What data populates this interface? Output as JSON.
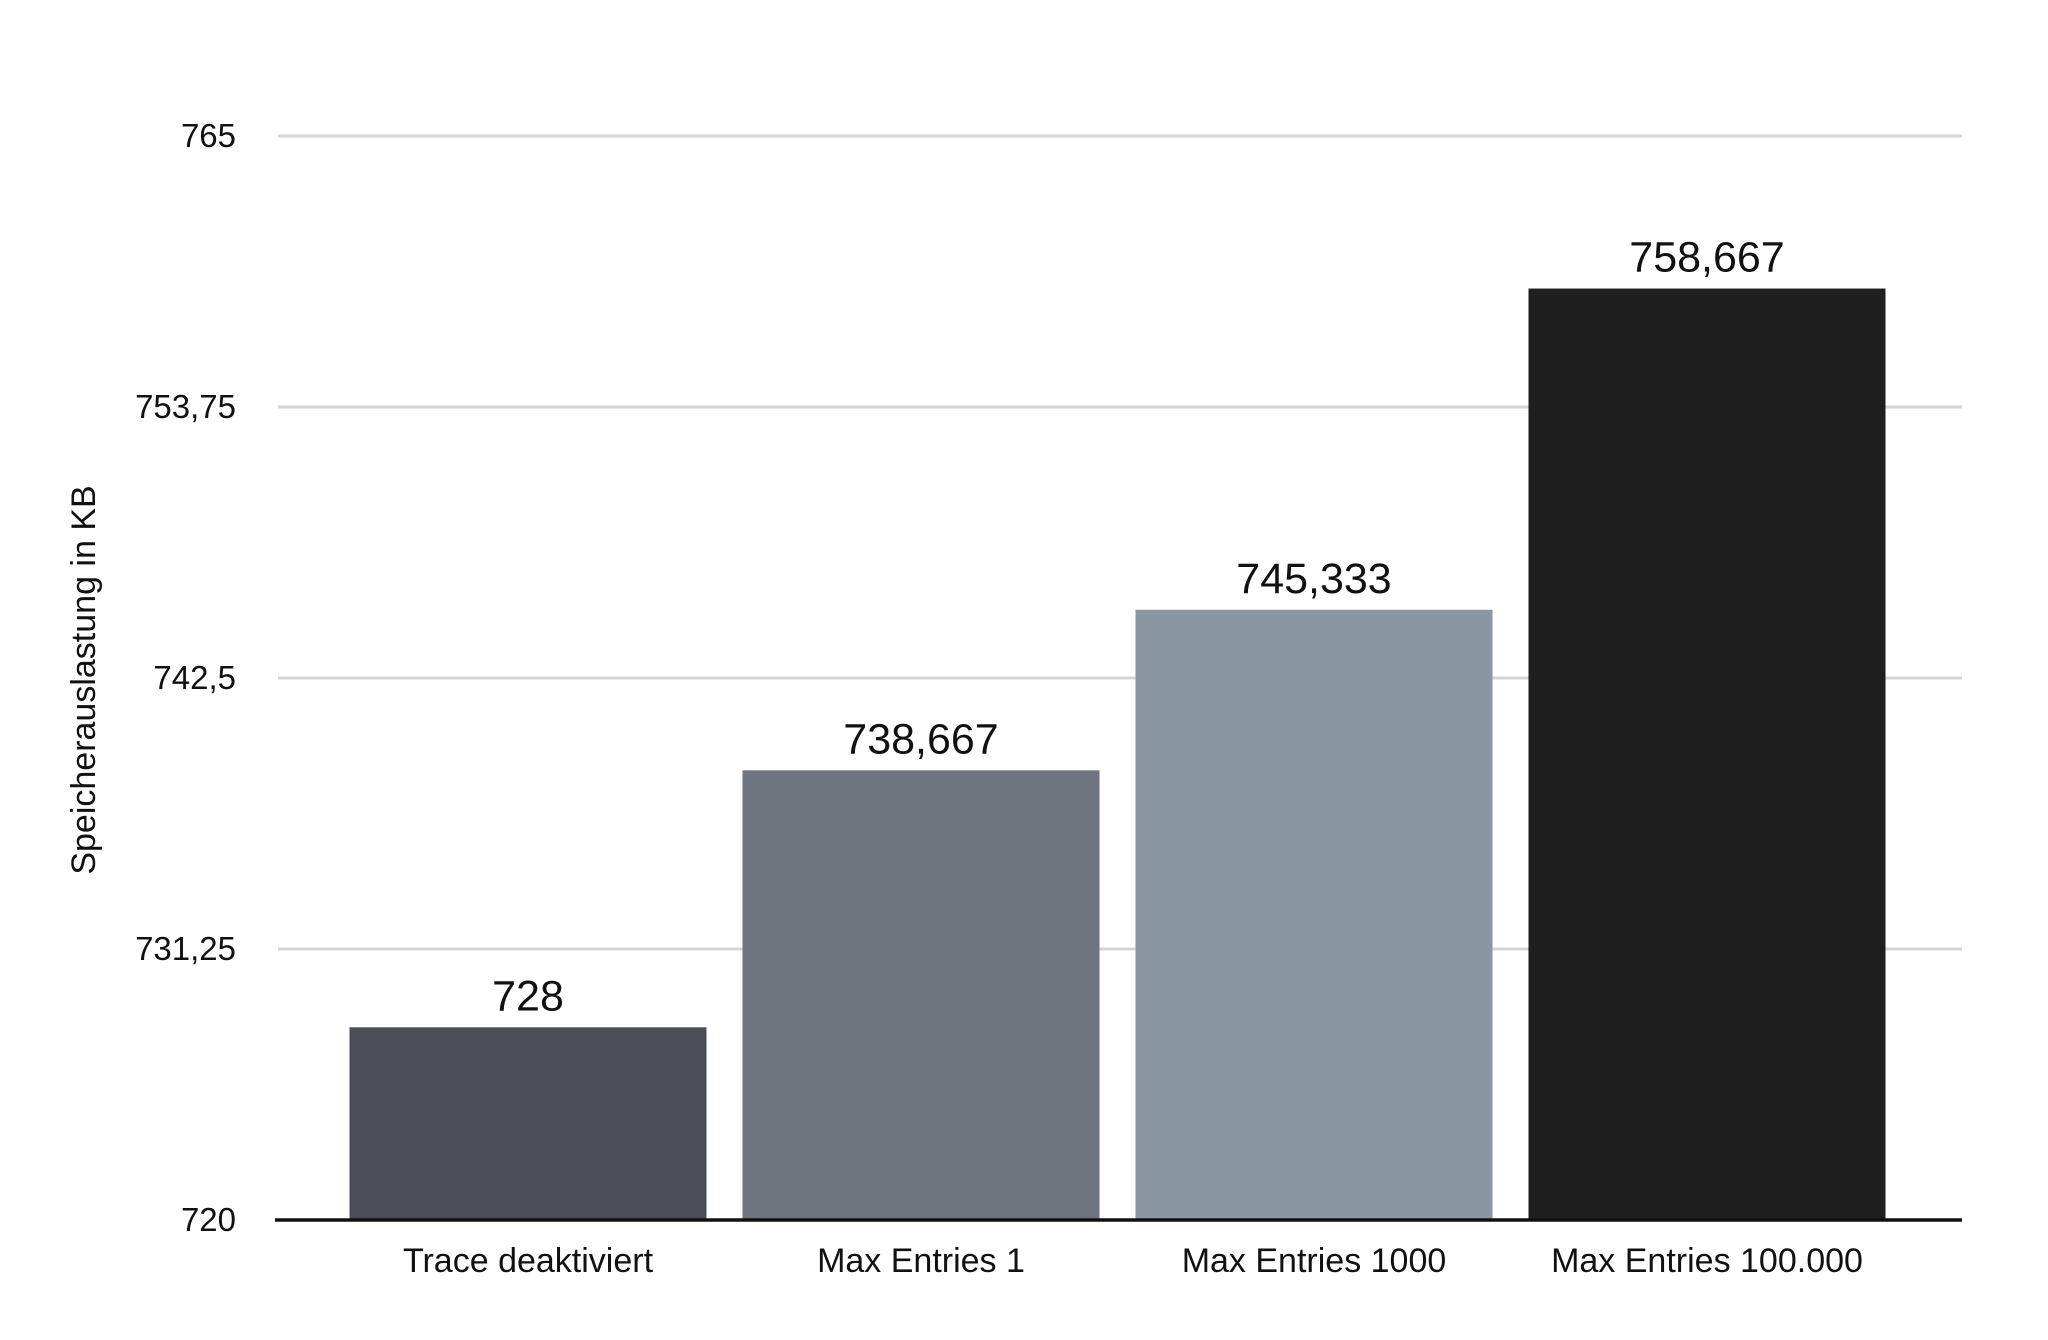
{
  "chart_data": {
    "type": "bar",
    "categories": [
      "Trace deaktiviert",
      "Max Entries 1",
      "Max Entries 1000",
      "Max Entries 100.000"
    ],
    "values": [
      728,
      738.667,
      745.333,
      758.667
    ],
    "value_labels": [
      "728",
      "738,667",
      "745,333",
      "758,667"
    ],
    "colors": [
      "#4a4f57",
      "#6e757f",
      "#8a96a1",
      "#1f1f1f"
    ],
    "ylabel": "Speicherauslastung in KB",
    "xlabel": "",
    "title": "",
    "ylim": [
      720,
      765
    ],
    "yticks": [
      720,
      731.25,
      742.5,
      753.75,
      765
    ],
    "ytick_labels": [
      "720",
      "731,25",
      "742,5",
      "753,75",
      "765"
    ],
    "grid": true,
    "legend": "none"
  }
}
